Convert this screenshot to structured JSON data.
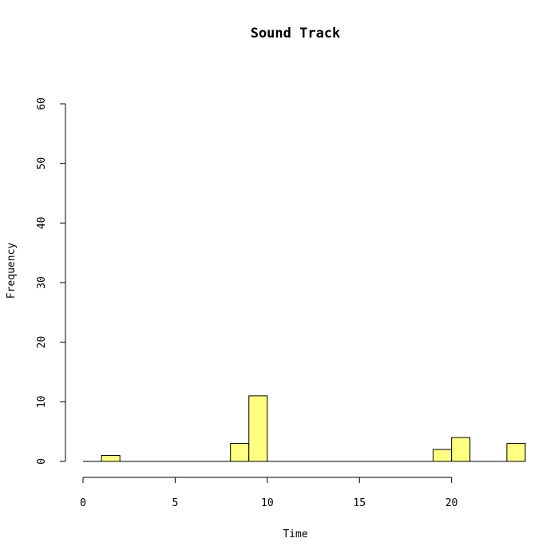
{
  "chart_data": {
    "type": "bar",
    "title": "Sound Track",
    "xlabel": "Time",
    "ylabel": "Frequency",
    "bin_width": 1,
    "bins": [
      {
        "start": 1,
        "end": 2,
        "count": 1
      },
      {
        "start": 8,
        "end": 9,
        "count": 3
      },
      {
        "start": 9,
        "end": 10,
        "count": 11
      },
      {
        "start": 19,
        "end": 20,
        "count": 2
      },
      {
        "start": 20,
        "end": 21,
        "count": 4
      },
      {
        "start": 23,
        "end": 24,
        "count": 3
      }
    ],
    "xlim": [
      0,
      24
    ],
    "ylim": [
      0,
      60
    ],
    "x_ticks": [
      0,
      5,
      10,
      15,
      20
    ],
    "y_ticks": [
      0,
      10,
      20,
      30,
      40,
      50,
      60
    ],
    "bar_color": "#FFFF80",
    "grid": false,
    "legend": "none"
  }
}
